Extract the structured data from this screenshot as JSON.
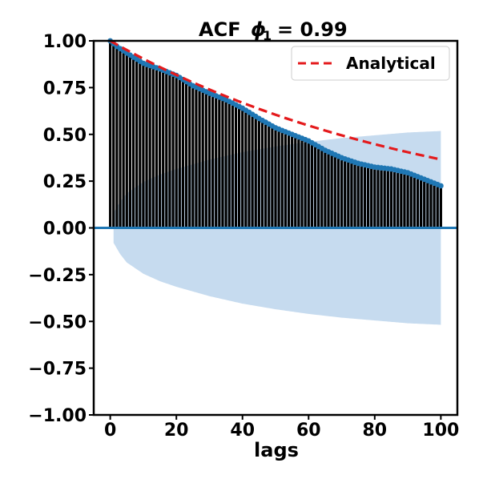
{
  "chart_data": {
    "type": "bar",
    "title": "ACF",
    "title_math_symbol": "ϕ",
    "title_math_subscript": "1",
    "title_math_value": "= 0.99",
    "xlabel": "lags",
    "ylabel": "",
    "xlim": [
      -5,
      105
    ],
    "ylim": [
      -1.0,
      1.0
    ],
    "x_ticks": [
      0,
      20,
      40,
      60,
      80,
      100
    ],
    "y_ticks": [
      1.0,
      0.75,
      0.5,
      0.25,
      0.0,
      -0.25,
      -0.5,
      -0.75,
      -1.0
    ],
    "y_tick_labels": [
      "1.00",
      "0.75",
      "0.50",
      "0.25",
      "0.00",
      "−0.25",
      "−0.50",
      "−0.75",
      "−1.00"
    ],
    "x_tick_labels": [
      "0",
      "20",
      "40",
      "60",
      "80",
      "100"
    ],
    "grid": false,
    "legend": {
      "placement": "top-right",
      "entries": [
        "Analytical"
      ]
    },
    "lags_max": 100,
    "acf_anchors": [
      [
        0,
        1.0
      ],
      [
        2,
        0.97
      ],
      [
        5,
        0.935
      ],
      [
        10,
        0.88
      ],
      [
        15,
        0.85
      ],
      [
        20,
        0.815
      ],
      [
        25,
        0.76
      ],
      [
        30,
        0.72
      ],
      [
        35,
        0.685
      ],
      [
        40,
        0.64
      ],
      [
        45,
        0.585
      ],
      [
        50,
        0.535
      ],
      [
        55,
        0.5
      ],
      [
        60,
        0.465
      ],
      [
        65,
        0.415
      ],
      [
        70,
        0.375
      ],
      [
        75,
        0.345
      ],
      [
        80,
        0.325
      ],
      [
        85,
        0.315
      ],
      [
        90,
        0.295
      ],
      [
        95,
        0.26
      ],
      [
        100,
        0.225
      ]
    ],
    "analytical": {
      "name": "Analytical",
      "phi": 0.99,
      "lag_start": 0,
      "lag_end": 100
    },
    "confidence_band_anchors": [
      [
        1,
        0.08
      ],
      [
        3,
        0.14
      ],
      [
        5,
        0.185
      ],
      [
        10,
        0.245
      ],
      [
        15,
        0.285
      ],
      [
        20,
        0.315
      ],
      [
        30,
        0.365
      ],
      [
        40,
        0.405
      ],
      [
        50,
        0.435
      ],
      [
        60,
        0.46
      ],
      [
        70,
        0.48
      ],
      [
        80,
        0.495
      ],
      [
        90,
        0.51
      ],
      [
        100,
        0.518
      ]
    ],
    "colors": {
      "stem": "#000000",
      "marker": "#1f77b4",
      "zero_line": "#1f77b4",
      "band": "#c6dbef",
      "analytical": "#e41a1c"
    }
  }
}
